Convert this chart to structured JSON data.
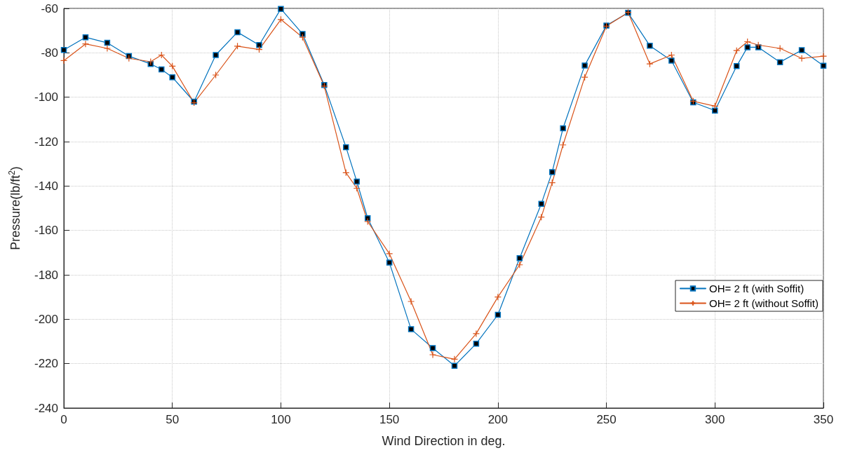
{
  "chart_data": {
    "type": "line",
    "xlabel": "Wind Direction in deg.",
    "ylabel": "Pressure(lb/ft$^{2}$)",
    "x": [
      0,
      10,
      20,
      30,
      40,
      45,
      50,
      60,
      70,
      80,
      90,
      100,
      110,
      120,
      130,
      135,
      140,
      150,
      160,
      170,
      180,
      190,
      200,
      210,
      220,
      225,
      230,
      240,
      250,
      260,
      270,
      280,
      290,
      300,
      310,
      315,
      320,
      330,
      340,
      350
    ],
    "series": [
      {
        "name": "OH= 2 ft (with Soffit)",
        "color": "#0072bd",
        "marker": "square",
        "values": [
          -78.7,
          -73,
          -75.5,
          -81.5,
          -85,
          -87.5,
          -91,
          -102,
          -81,
          -70.7,
          -76.5,
          -60.2,
          -71.5,
          -94.5,
          -122.5,
          -138,
          -154.5,
          -174.5,
          -204.5,
          -213,
          -221,
          -211,
          -198,
          -172.5,
          -148,
          -133.7,
          -114,
          -85.7,
          -67.7,
          -62,
          -76.8,
          -83.5,
          -102.3,
          -106,
          -86,
          -77.5,
          -77.5,
          -84.2,
          -78.8,
          -85.8
        ]
      },
      {
        "name": "OH= 2 ft (without Soffit)",
        "color": "#d95319",
        "marker": "cross",
        "values": [
          -83.5,
          -76,
          -78,
          -82.5,
          -84,
          -81,
          -86,
          -102.5,
          -90,
          -77,
          -78.5,
          -65,
          -73,
          -95,
          -134,
          -141,
          -156,
          -170.5,
          -192,
          -216,
          -218,
          -206.5,
          -190,
          -175.5,
          -154,
          -138.5,
          -121.5,
          -91,
          -68,
          -61.8,
          -85,
          -81,
          -101.8,
          -104,
          -79,
          -75,
          -76.5,
          -78,
          -82.5,
          -81.5
        ]
      }
    ],
    "xlim": [
      0,
      350
    ],
    "xticks": [
      0,
      50,
      100,
      150,
      200,
      250,
      300,
      350
    ],
    "ylim": [
      -240,
      -60
    ],
    "yticks": [
      -240,
      -220,
      -200,
      -180,
      -160,
      -140,
      -120,
      -100,
      -80,
      -60
    ],
    "grid": true,
    "legend": "right",
    "line_style": "solid"
  }
}
